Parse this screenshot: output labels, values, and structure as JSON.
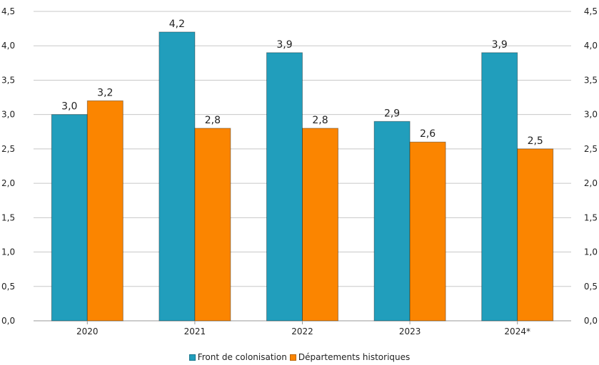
{
  "chart_data": {
    "type": "bar",
    "categories": [
      "2020",
      "2021",
      "2022",
      "2023",
      "2024*"
    ],
    "series": [
      {
        "name": "Front de colonisation",
        "values": [
          3.0,
          4.2,
          3.9,
          2.9,
          3.9
        ],
        "labels": [
          "3,0",
          "4,2",
          "3,9",
          "2,9",
          "3,9"
        ],
        "color": "#219ebc"
      },
      {
        "name": "Départements historiques",
        "values": [
          3.2,
          2.8,
          2.8,
          2.6,
          2.5
        ],
        "labels": [
          "3,2",
          "2,8",
          "2,8",
          "2,6",
          "2,5"
        ],
        "color": "#fb8500"
      }
    ],
    "ylim": [
      0,
      4.5
    ],
    "yticks": [
      "0,0",
      "0,5",
      "1,0",
      "1,5",
      "2,0",
      "2,5",
      "3,0",
      "3,5",
      "4,0",
      "4,5"
    ],
    "ytick_values": [
      0,
      0.5,
      1.0,
      1.5,
      2.0,
      2.5,
      3.0,
      3.5,
      4.0,
      4.5
    ],
    "grid": true,
    "legend_position": "bottom-center",
    "secondary_axis": "right mirrors left"
  }
}
